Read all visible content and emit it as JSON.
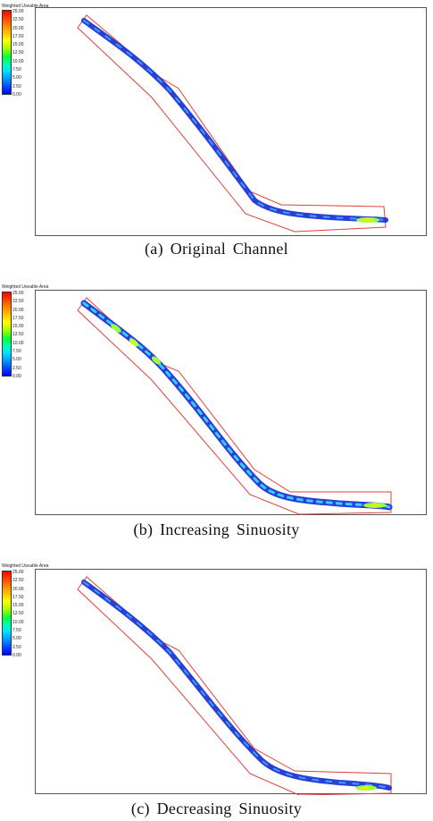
{
  "legend": {
    "title": "Weighted Useable Area",
    "ticks": [
      "25.00",
      "22.50",
      "20.00",
      "17.50",
      "15.00",
      "12.50",
      "10.00",
      "7.50",
      "5.00",
      "2.50",
      "0.00"
    ]
  },
  "panels": [
    {
      "caption": "(a)  Original  Channel"
    },
    {
      "caption": "(b)  Increasing  Sinuosity"
    },
    {
      "caption": "(c)  Decreasing  Sinuosity"
    }
  ]
}
